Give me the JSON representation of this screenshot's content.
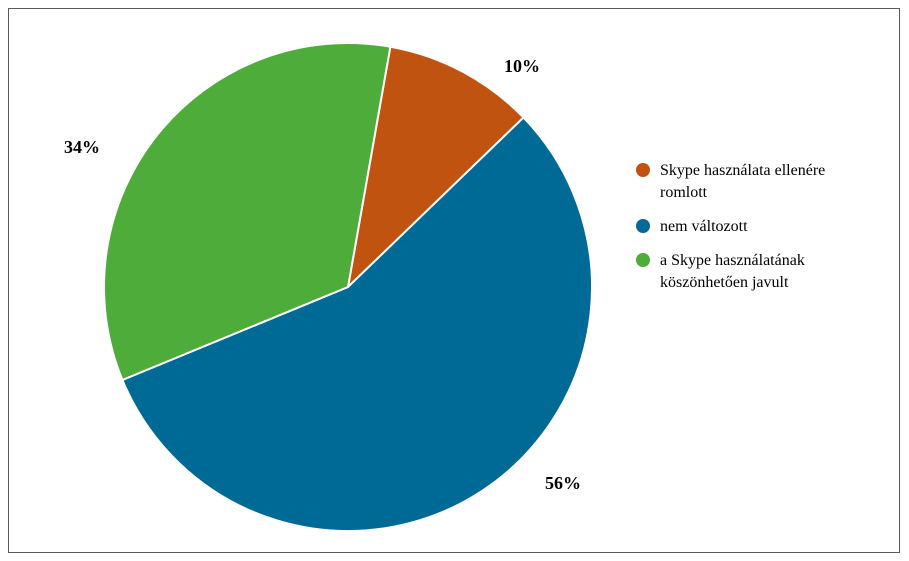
{
  "chart_data": {
    "type": "pie",
    "categories": [
      "Skype használata ellenére romlott",
      "nem változott",
      "a Skype használatának köszönhetően javult"
    ],
    "values": [
      10,
      56,
      34
    ],
    "colors": [
      "#c0530f",
      "#006a96",
      "#4ead3a"
    ],
    "data_labels": [
      "10%",
      "56%",
      "34%"
    ],
    "legend_position": "right"
  }
}
